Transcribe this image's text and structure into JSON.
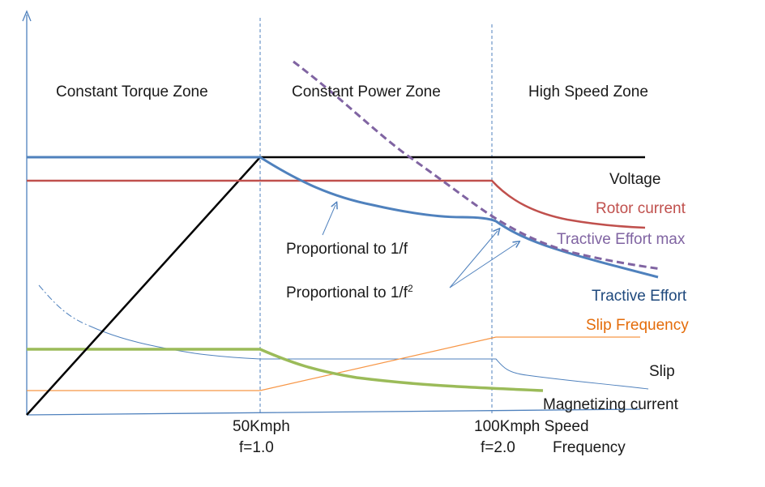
{
  "zones": {
    "constant_torque": "Constant Torque Zone",
    "constant_power": "Constant Power Zone",
    "high_speed": "High Speed Zone"
  },
  "curves": {
    "voltage": "Voltage",
    "rotor_current": "Rotor current",
    "tractive_effort_max": "Tractive Effort max",
    "tractive_effort": "Tractive Effort",
    "slip_frequency": "Slip Frequency",
    "slip": "Slip",
    "magnetizing_current": "Magnetizing current"
  },
  "annotations": {
    "prop_1_f": "Proportional to 1/f",
    "prop_1_f2_base": "Proportional to 1/f",
    "prop_1_f2_exp": "2"
  },
  "axis": {
    "tick1_speed": "50Kmph",
    "tick1_freq": "f=1.0",
    "tick2_speed": "100Kmph Speed",
    "tick2_freq": "f=2.0",
    "freq_label": "Frequency"
  },
  "colors": {
    "voltage": "#000000",
    "rotor_current": "#c0504d",
    "tractive_effort": "#4f81bd",
    "tractive_effort_max": "#8064a2",
    "slip_frequency": "#f79646",
    "slip": "#4f81bd",
    "magnetizing_current": "#9bbb59",
    "zone_divider": "#4f81bd",
    "axis": "#4f81bd"
  }
}
